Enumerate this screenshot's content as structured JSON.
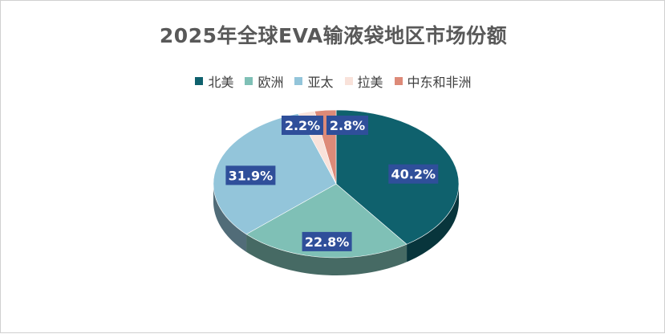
{
  "chart_data": {
    "type": "pie",
    "title": "2025年全球EVA输液袋地区市场份额",
    "categories": [
      "北美",
      "欧洲",
      "亚太",
      "拉美",
      "中东和非洲"
    ],
    "values": [
      40.2,
      22.8,
      31.9,
      2.2,
      2.8
    ],
    "labels": [
      "40.2%",
      "22.8%",
      "31.9%",
      "2.2%",
      "2.8%"
    ],
    "colors": [
      "#0f616d",
      "#7fc0b6",
      "#93c5da",
      "#f9e2da",
      "#dd8a78"
    ],
    "label_box_color": "#2f4f9a",
    "legend_position": "top",
    "start": "12 o'clock, clockwise",
    "style": "3d"
  }
}
